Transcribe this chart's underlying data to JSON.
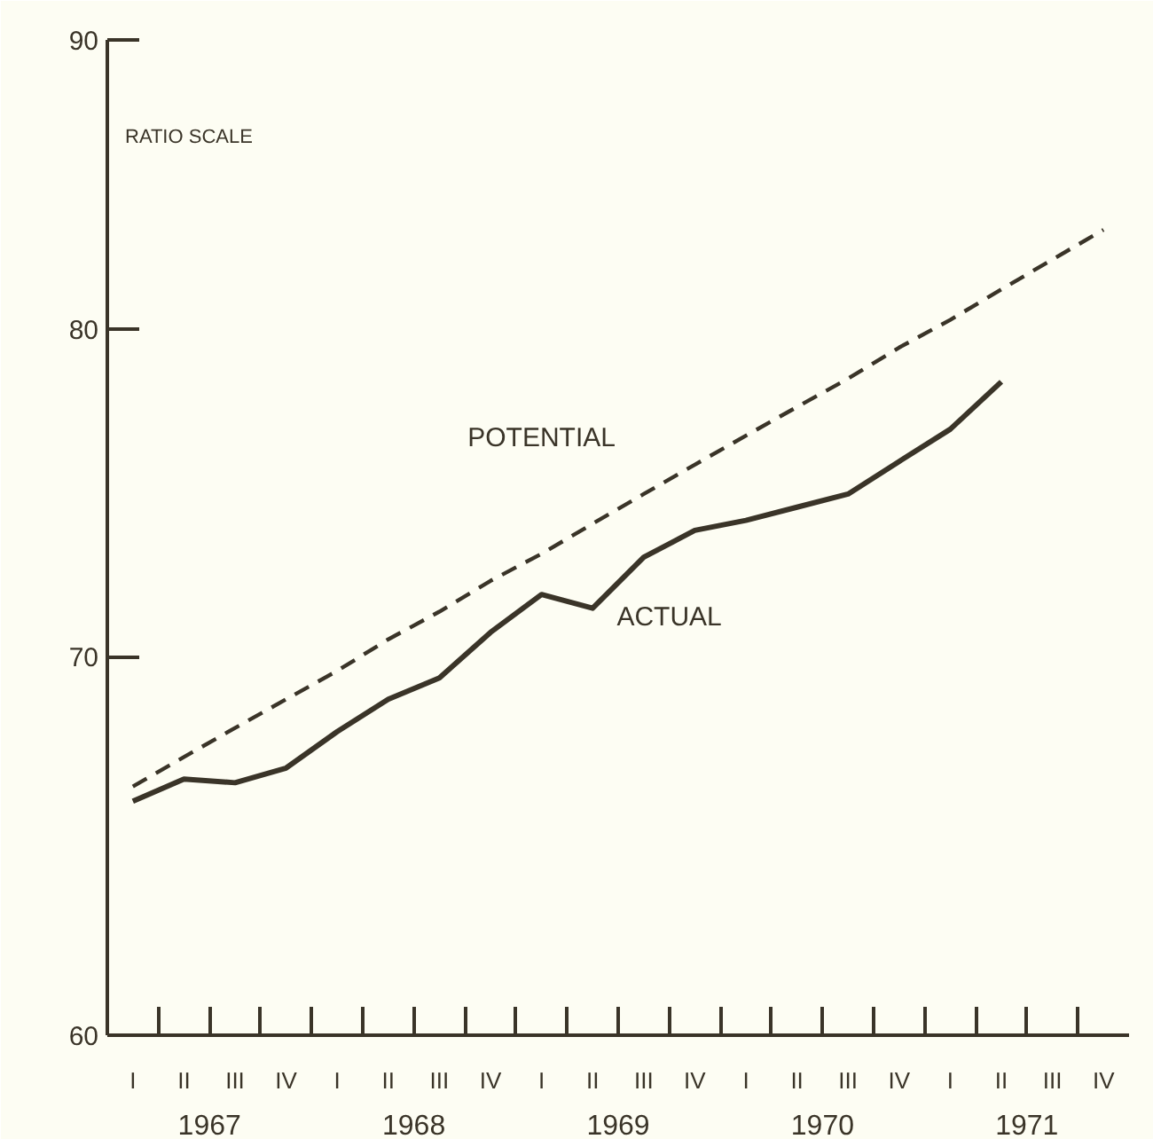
{
  "chart_data": {
    "type": "line",
    "log": "y",
    "categories": [
      "I",
      "II",
      "III",
      "IV",
      "I",
      "II",
      "III",
      "IV",
      "I",
      "II",
      "III",
      "IV",
      "I",
      "II",
      "III",
      "IV",
      "I",
      "II",
      "III",
      "IV"
    ],
    "ylim": [
      60,
      90
    ],
    "yticks": [
      60,
      70,
      80,
      90
    ],
    "series": [
      {
        "color": "#3a3428",
        "line_style": "solid",
        "values": [
          66.0,
          66.6,
          66.5,
          66.9,
          67.9,
          68.8,
          69.4,
          70.7,
          71.8,
          71.4,
          72.9,
          73.7,
          74.0,
          74.4,
          74.8,
          75.8,
          76.8,
          78.3,
          null,
          null
        ]
      },
      {
        "color": "#3a3428",
        "line_style": "dashed",
        "values": [
          66.4,
          67.2,
          68.0,
          68.8,
          69.6,
          70.5,
          71.3,
          72.2,
          73.0,
          73.9,
          74.8,
          75.7,
          76.6,
          77.5,
          78.4,
          79.4,
          80.3,
          81.3,
          82.3,
          83.3
        ]
      }
    ],
    "annotations": [
      "RATIO SCALE",
      "POTENTIAL",
      "ACTUAL",
      "1967",
      "1968",
      "1969",
      "1970",
      "1971"
    ]
  }
}
